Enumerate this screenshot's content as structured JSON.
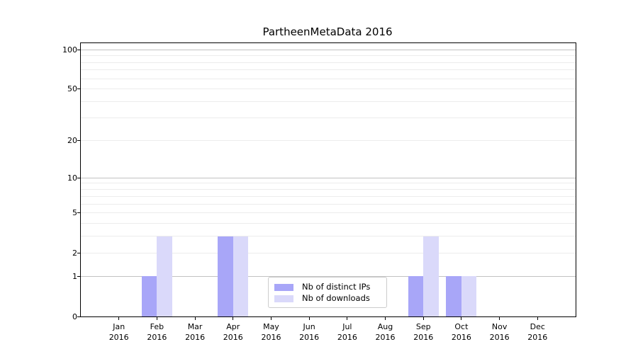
{
  "chart_data": {
    "type": "bar",
    "title": "PartheenMetaData 2016",
    "categories": [
      "Jan 2016",
      "Feb 2016",
      "Mar 2016",
      "Apr 2016",
      "May 2016",
      "Jun 2016",
      "Jul 2016",
      "Aug 2016",
      "Sep 2016",
      "Oct 2016",
      "Nov 2016",
      "Dec 2016"
    ],
    "x_tick_labels": [
      {
        "month": "Jan",
        "year": "2016"
      },
      {
        "month": "Feb",
        "year": "2016"
      },
      {
        "month": "Mar",
        "year": "2016"
      },
      {
        "month": "Apr",
        "year": "2016"
      },
      {
        "month": "May",
        "year": "2016"
      },
      {
        "month": "Jun",
        "year": "2016"
      },
      {
        "month": "Jul",
        "year": "2016"
      },
      {
        "month": "Aug",
        "year": "2016"
      },
      {
        "month": "Sep",
        "year": "2016"
      },
      {
        "month": "Oct",
        "year": "2016"
      },
      {
        "month": "Nov",
        "year": "2016"
      },
      {
        "month": "Dec",
        "year": "2016"
      }
    ],
    "series": [
      {
        "name": "Nb of distinct IPs",
        "color": "#a8a6f8",
        "values": [
          0,
          1,
          0,
          3,
          0,
          0,
          0,
          0,
          1,
          1,
          0,
          0
        ]
      },
      {
        "name": "Nb of downloads",
        "color": "#dad9fa",
        "values": [
          0,
          3,
          0,
          3,
          0,
          0,
          0,
          0,
          3,
          1,
          0,
          0
        ]
      }
    ],
    "y_axis": {
      "scale": "log10(1+x)",
      "tick_values": [
        0,
        1,
        2,
        5,
        10,
        20,
        50,
        100
      ],
      "tick_labels": [
        "0",
        "1",
        "2",
        "5",
        "10",
        "20",
        "50",
        "100"
      ],
      "major_gridline_values": [
        1,
        10,
        100
      ],
      "minor_gridline_values": [
        2,
        3,
        4,
        5,
        6,
        7,
        8,
        9,
        20,
        30,
        40,
        50,
        60,
        70,
        80,
        90
      ],
      "range": [
        0,
        110
      ]
    },
    "xlabel": "",
    "ylabel": "",
    "grid": true,
    "legend": {
      "position": "lower-center-inside",
      "entries": [
        "Nb of distinct IPs",
        "Nb of downloads"
      ]
    },
    "colors": {
      "bar_distinct_ips": "#a8a6f8",
      "bar_downloads": "#dad9fa",
      "gridline_minor": "#ececec",
      "gridline_major": "#c2c2c2",
      "axis_spine": "#000000",
      "background": "#ffffff"
    }
  }
}
